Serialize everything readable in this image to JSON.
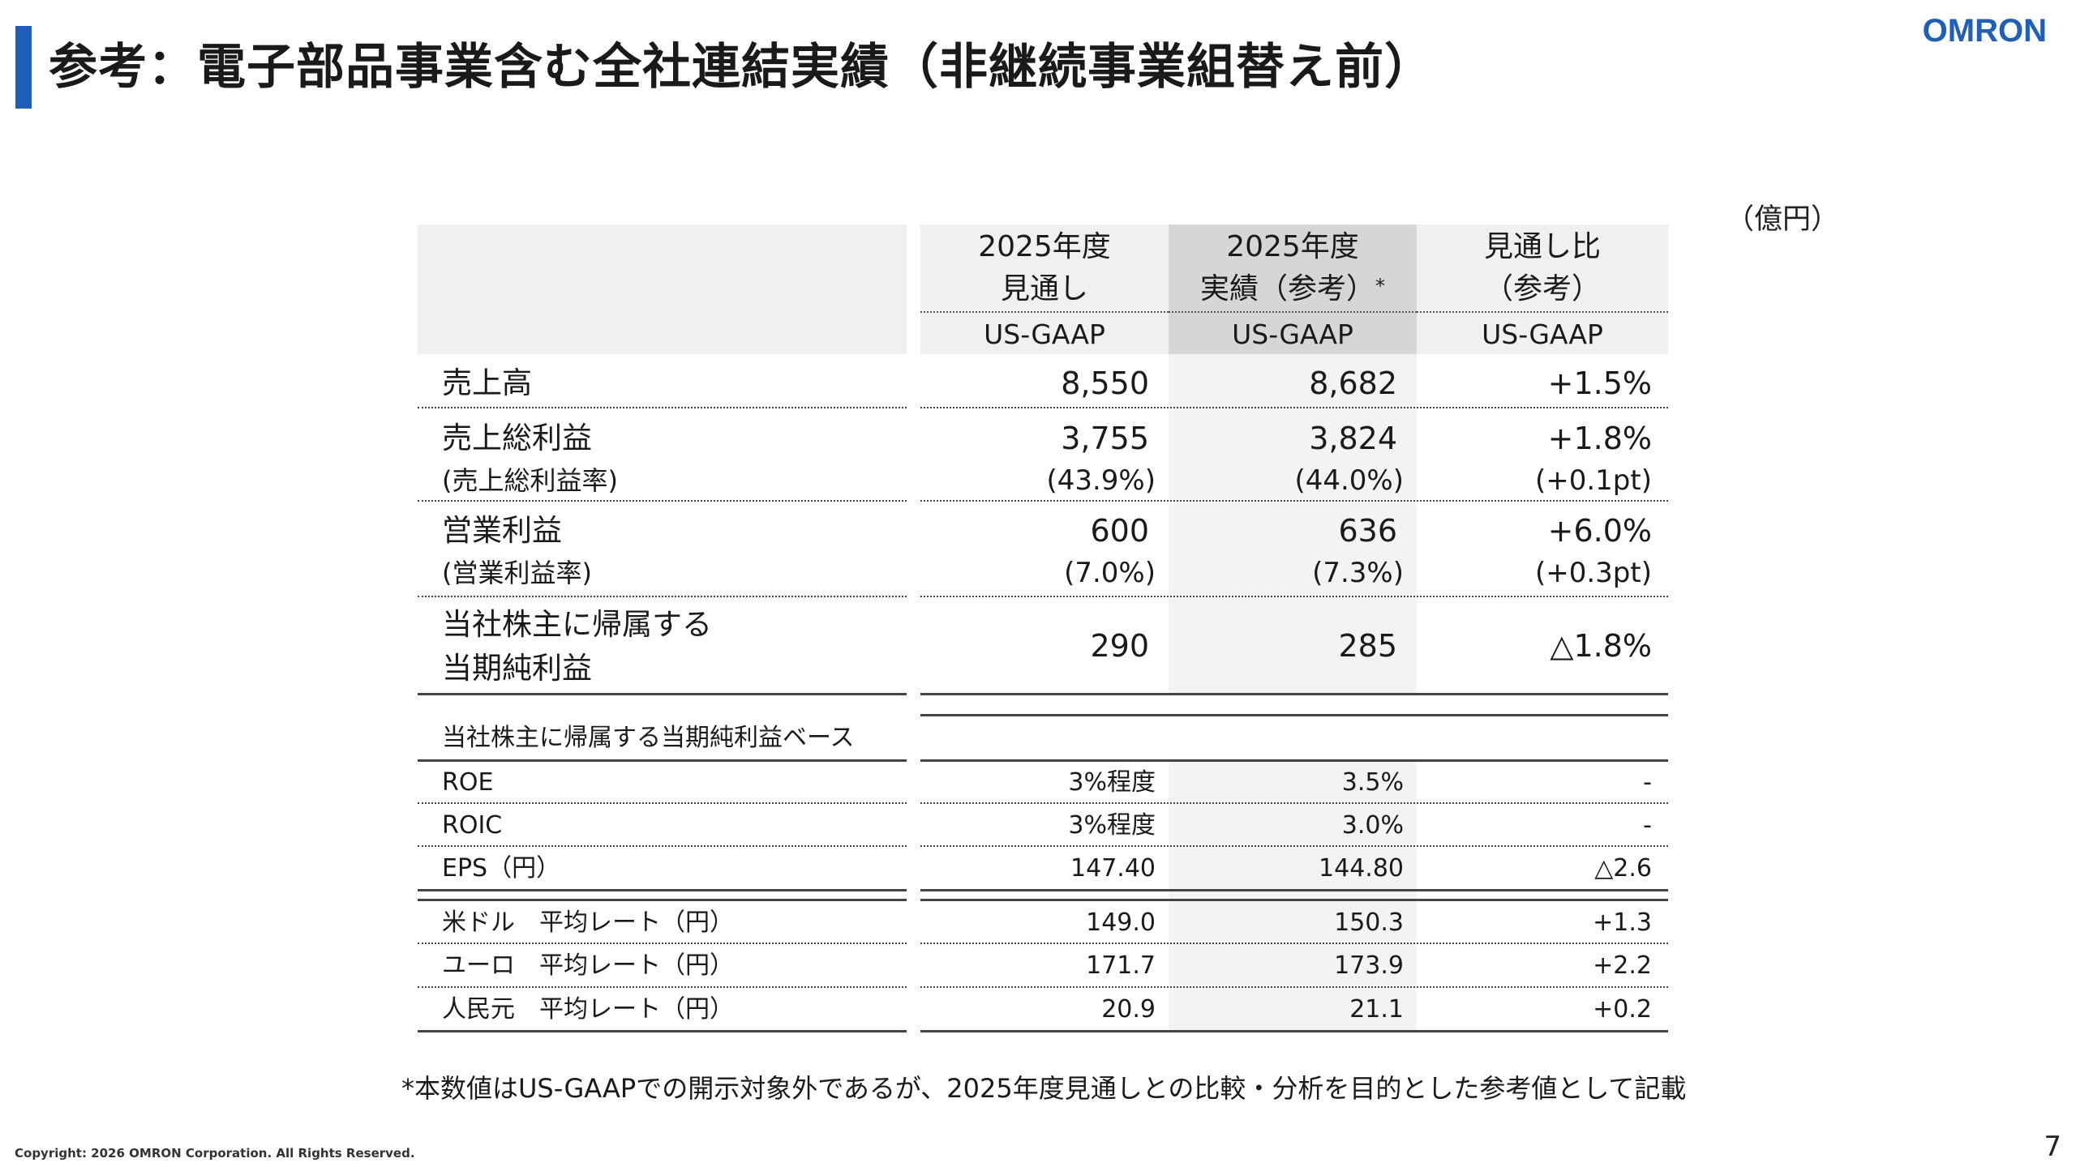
{
  "title": "参考：電子部品事業含む全社連結実績（非継続事業組替え前）",
  "logo": "OMRON",
  "unit": "（億円）",
  "columns": [
    {
      "line1": "2025年度",
      "line2": "見通し",
      "basis": "US-GAAP"
    },
    {
      "line1": "2025年度",
      "line2": "実績（参考）",
      "marker": "*",
      "basis": "US-GAAP"
    },
    {
      "line1": "見通し比",
      "line2": "（参考）",
      "basis": "US-GAAP"
    }
  ],
  "main_rows": [
    {
      "label": "売上高",
      "values": [
        "8,550",
        "8,682",
        "+1.5%"
      ]
    },
    {
      "label": "売上総利益",
      "values": [
        "3,755",
        "3,824",
        "+1.8%"
      ],
      "sublabel": "(売上総利益率)",
      "subvalues": [
        "(43.9%)",
        "(44.0%)",
        "(+0.1pt)"
      ]
    },
    {
      "label": "営業利益",
      "values": [
        "600",
        "636",
        "+6.0%"
      ],
      "sublabel": "(営業利益率)",
      "subvalues": [
        "(7.0%)",
        "(7.3%)",
        "(+0.3pt)"
      ]
    },
    {
      "label_line1": "当社株主に帰属する",
      "label_line2": "当期純利益",
      "values": [
        "290",
        "285",
        "△1.8%"
      ]
    }
  ],
  "section_header": "当社株主に帰属する当期純利益ベース",
  "ratio_rows": [
    {
      "label": "ROE",
      "values": [
        "3%程度",
        "3.5%",
        "-"
      ]
    },
    {
      "label": "ROIC",
      "values": [
        "3%程度",
        "3.0%",
        "-"
      ]
    },
    {
      "label": "EPS（円）",
      "values": [
        "147.40",
        "144.80",
        "△2.6"
      ]
    }
  ],
  "fx_rows": [
    {
      "label": "米ドル　平均レート（円）",
      "values": [
        "149.0",
        "150.3",
        "+1.3"
      ]
    },
    {
      "label": "ユーロ　平均レート（円）",
      "values": [
        "171.7",
        "173.9",
        "+2.2"
      ]
    },
    {
      "label": "人民元　平均レート（円）",
      "values": [
        "20.9",
        "21.1",
        "+0.2"
      ]
    }
  ],
  "footnote": "*本数値はUS-GAAPでの開示対象外であるが、2025年度見通しとの比較・分析を目的とした参考値として記載",
  "copyright": "Copyright: 2026 OMRON Corporation. All Rights Reserved.",
  "page_number": "7"
}
